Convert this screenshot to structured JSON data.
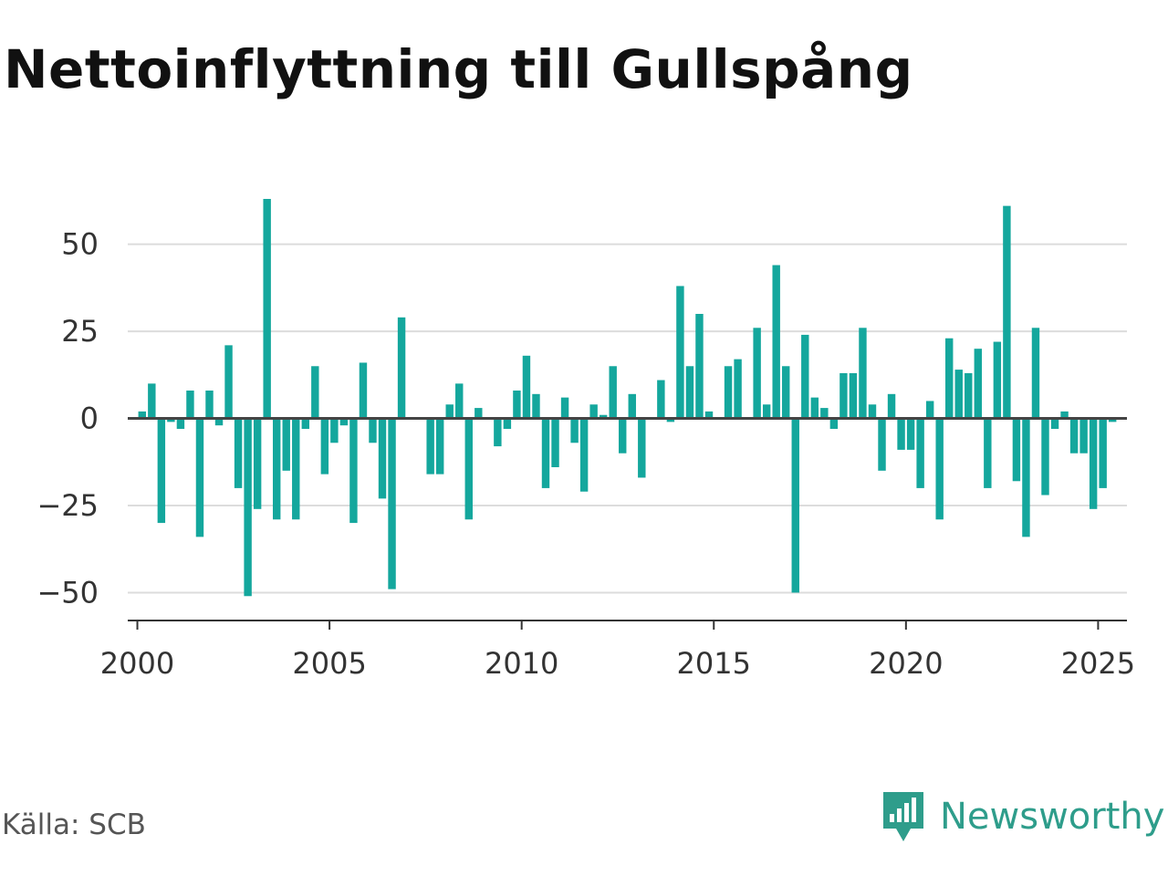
{
  "title": "Nettoinflyttning till Gullspång",
  "source": "Källa: SCB",
  "brand": {
    "name": "Newsworthy",
    "icon": "newsworthy-logo-icon",
    "color": "#2e9d8b"
  },
  "chart_data": {
    "type": "bar",
    "bar_color": "#14a79d",
    "grid": true,
    "ylim": [
      -58,
      63
    ],
    "xlim": [
      1999.75,
      2025.75
    ],
    "yticks": [
      50,
      25,
      0,
      -25,
      -50
    ],
    "ytick_labels": [
      "50",
      "25",
      "0",
      "−25",
      "−50"
    ],
    "xticks": [
      2000,
      2005,
      2010,
      2015,
      2020,
      2025
    ],
    "xtick_labels": [
      "2000",
      "2005",
      "2010",
      "2015",
      "2020",
      "2025"
    ],
    "x": [
      2000.125,
      2000.375,
      2000.625,
      2000.875,
      2001.125,
      2001.375,
      2001.625,
      2001.875,
      2002.125,
      2002.375,
      2002.625,
      2002.875,
      2003.125,
      2003.375,
      2003.625,
      2003.875,
      2004.125,
      2004.375,
      2004.625,
      2004.875,
      2005.125,
      2005.375,
      2005.625,
      2005.875,
      2006.125,
      2006.375,
      2006.625,
      2006.875,
      2007.125,
      2007.375,
      2007.625,
      2007.875,
      2008.125,
      2008.375,
      2008.625,
      2008.875,
      2009.125,
      2009.375,
      2009.625,
      2009.875,
      2010.125,
      2010.375,
      2010.625,
      2010.875,
      2011.125,
      2011.375,
      2011.625,
      2011.875,
      2012.125,
      2012.375,
      2012.625,
      2012.875,
      2013.125,
      2013.375,
      2013.625,
      2013.875,
      2014.125,
      2014.375,
      2014.625,
      2014.875,
      2015.125,
      2015.375,
      2015.625,
      2015.875,
      2016.125,
      2016.375,
      2016.625,
      2016.875,
      2017.125,
      2017.375,
      2017.625,
      2017.875,
      2018.125,
      2018.375,
      2018.625,
      2018.875,
      2019.125,
      2019.375,
      2019.625,
      2019.875,
      2020.125,
      2020.375,
      2020.625,
      2020.875,
      2021.125,
      2021.375,
      2021.625,
      2021.875,
      2022.125,
      2022.375,
      2022.625,
      2022.875,
      2023.125,
      2023.375,
      2023.625,
      2023.875,
      2024.125,
      2024.375,
      2024.625,
      2024.875,
      2025.125,
      2025.375
    ],
    "values": [
      2,
      10,
      -30,
      -1,
      -3,
      8,
      -34,
      8,
      -2,
      21,
      -20,
      -51,
      -26,
      63,
      -29,
      -15,
      -29,
      -3,
      15,
      -16,
      -7,
      -2,
      -30,
      16,
      -7,
      -23,
      -49,
      29,
      0,
      0,
      -16,
      -16,
      4,
      10,
      -29,
      3,
      0,
      -8,
      -3,
      8,
      18,
      7,
      -20,
      -14,
      6,
      -7,
      -21,
      4,
      1,
      15,
      -10,
      7,
      -17,
      0,
      11,
      -1,
      38,
      15,
      30,
      2,
      0,
      15,
      17,
      0,
      26,
      4,
      44,
      15,
      -50,
      24,
      6,
      3,
      -3,
      13,
      13,
      26,
      4,
      -15,
      7,
      -9,
      -9,
      -20,
      5,
      -29,
      23,
      14,
      13,
      20,
      -20,
      22,
      61,
      -18,
      -34,
      26,
      -22,
      -3,
      2,
      -10,
      -10,
      -26,
      -20,
      -1
    ]
  }
}
